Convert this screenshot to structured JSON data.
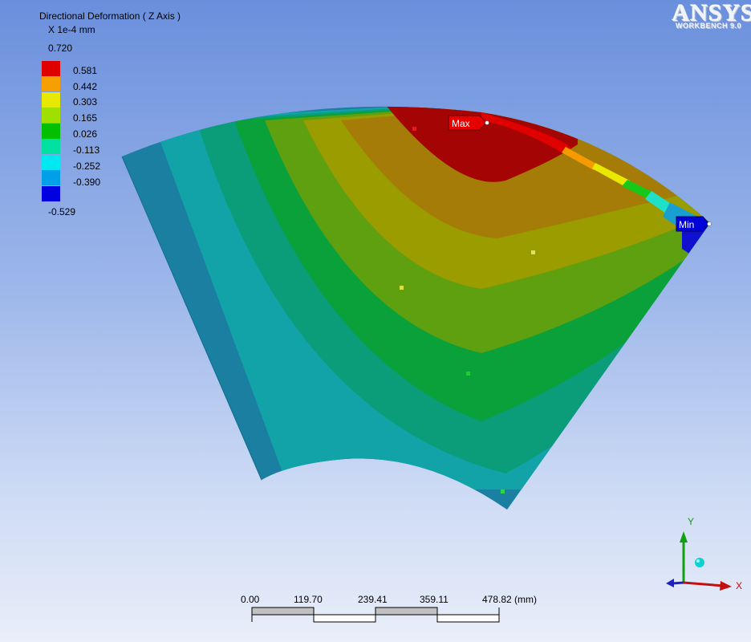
{
  "viewer": {
    "logo": "ANSYS",
    "logo_sub": "WORKBENCH 9.0"
  },
  "legend": {
    "title": "Directional Deformation ( Z Axis )",
    "unit": "X 1e-4 mm",
    "top_value": "0.720",
    "bottom_value": "-0.529",
    "bands": [
      {
        "label": "0.581",
        "color": "#e10000"
      },
      {
        "label": "0.442",
        "color": "#f5a000"
      },
      {
        "label": "0.303",
        "color": "#e8e800"
      },
      {
        "label": "0.165",
        "color": "#a0e000"
      },
      {
        "label": "0.026",
        "color": "#00c000"
      },
      {
        "label": "-0.113",
        "color": "#00e0a0"
      },
      {
        "label": "-0.252",
        "color": "#00e8f0"
      },
      {
        "label": "-0.390",
        "color": "#00a0e8"
      },
      {
        "label": "",
        "color": "#0000e0"
      }
    ]
  },
  "probes": {
    "max_label": "Max",
    "min_label": "Min"
  },
  "scale_bar": {
    "ticks": [
      "0.00",
      "119.70",
      "239.41",
      "359.11",
      "478.82 (mm)"
    ]
  },
  "triad": {
    "x_label": "X",
    "y_label": "Y"
  }
}
